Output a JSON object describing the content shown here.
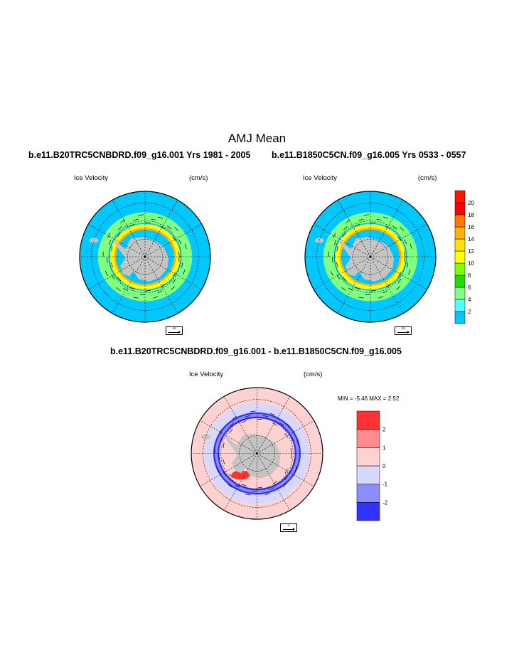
{
  "title": "AMJ Mean",
  "panels": {
    "top_left": {
      "title": "b.e11.B20TRC5CNBDRD.f09_g16.001  Yrs 1981 - 2005",
      "field_label": "Ice Velocity",
      "units_label": "(cm/s)",
      "ref_vector_label": "10"
    },
    "top_right": {
      "title": "b.e11.B1850C5CN.f09_g16.005  Yrs 0533 - 0557",
      "field_label": "Ice Velocity",
      "units_label": "(cm/s)",
      "ref_vector_label": "10"
    },
    "diff": {
      "title": "b.e11.B20TRC5CNBDRD.f09_g16.001 - b.e11.B1850C5CN.f09_g16.005",
      "field_label": "Ice Velocity",
      "units_label": "(cm/s)",
      "ref_vector_label": "2",
      "minmax_text": "MIN =  -5.46 MAX =   2.52"
    }
  },
  "chart_data": [
    {
      "type": "heatmap",
      "projection": "south-polar-stereographic",
      "title": "b.e11.B20TRC5CNBDRD.f09_g16.001  Yrs 1981 - 2005",
      "variable": "Ice Velocity",
      "units": "(cm/s)",
      "reference_vector": 10,
      "colorbar": {
        "levels": [
          2,
          4,
          6,
          8,
          10,
          12,
          14,
          16,
          18,
          20
        ],
        "colors": [
          "#00c8ff",
          "#50ffff",
          "#80ff80",
          "#20dc00",
          "#80ff00",
          "#ffff00",
          "#ffe100",
          "#ffb400",
          "#ff7800",
          "#ff0000",
          "#ff1400"
        ]
      }
    },
    {
      "type": "heatmap",
      "projection": "south-polar-stereographic",
      "title": "b.e11.B1850C5CN.f09_g16.005  Yrs 0533 - 0557",
      "variable": "Ice Velocity",
      "units": "(cm/s)",
      "reference_vector": 10,
      "colorbar": {
        "levels": [
          2,
          4,
          6,
          8,
          10,
          12,
          14,
          16,
          18,
          20
        ],
        "colors": [
          "#00c8ff",
          "#50ffff",
          "#80ff80",
          "#20dc00",
          "#80ff00",
          "#ffff00",
          "#ffe100",
          "#ffb400",
          "#ff7800",
          "#ff0000",
          "#ff1400"
        ]
      }
    },
    {
      "type": "heatmap",
      "projection": "south-polar-stereographic",
      "title": "b.e11.B20TRC5CNBDRD.f09_g16.001 - b.e11.B1850C5CN.f09_g16.005",
      "variable": "Ice Velocity",
      "units": "(cm/s)",
      "reference_vector": 2,
      "min": -5.46,
      "max": 2.52,
      "colorbar": {
        "levels": [
          -2,
          -1,
          0,
          1,
          2
        ],
        "colors": [
          "#3232ff",
          "#8c8cff",
          "#d8d8ff",
          "#ffd2d2",
          "#ff8c8c",
          "#ff3232"
        ]
      }
    }
  ],
  "colors": {
    "land": "#c4c4c4",
    "ocean_speed": "#00c8ff",
    "ocean_diff": "#ffd2d2"
  }
}
